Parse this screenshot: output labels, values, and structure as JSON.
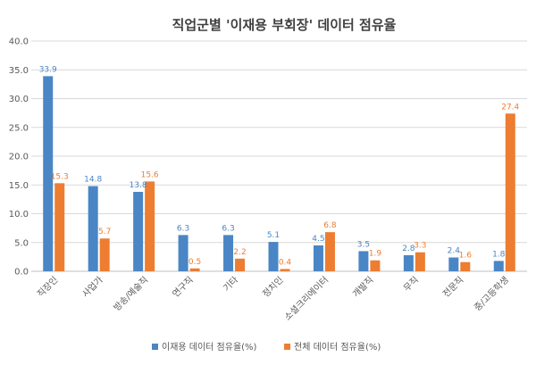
{
  "chart_data": {
    "type": "bar",
    "title": "직업군별 '이재용 부회장' 데이터 점유율",
    "xlabel": "",
    "ylabel": "",
    "ylim": [
      0,
      40
    ],
    "yticks": [
      "0.0",
      "5.0",
      "10.0",
      "15.0",
      "20.0",
      "25.0",
      "30.0",
      "35.0",
      "40.0"
    ],
    "grid": true,
    "legend_position": "bottom",
    "categories": [
      "직장인",
      "사업가",
      "방송/예술직",
      "연구직",
      "기타",
      "정치인",
      "소셜크리에이터",
      "개발직",
      "무직",
      "전문직",
      "중/고등학생"
    ],
    "series": [
      {
        "name": "이재용 데이터 점유율(%)",
        "color": "#4a86c5",
        "values": [
          33.9,
          14.8,
          13.8,
          6.3,
          6.3,
          5.1,
          4.5,
          3.5,
          2.8,
          2.4,
          1.8
        ],
        "labels": [
          "33.9",
          "14.8",
          "13.8",
          "6.3",
          "6.3",
          "5.1",
          "4.5",
          "3.5",
          "2.8",
          "2.4",
          "1.8"
        ]
      },
      {
        "name": "전체 데이터 점유율(%)",
        "color": "#ed7d31",
        "values": [
          15.3,
          5.7,
          15.6,
          0.5,
          2.2,
          0.4,
          6.8,
          1.9,
          3.3,
          1.6,
          27.4
        ],
        "labels": [
          "15.3",
          "5.7",
          "15.6",
          "0.5",
          "2.2",
          "0.4",
          "6.8",
          "1.9",
          "3.3",
          "1.6",
          "27.4"
        ]
      }
    ]
  }
}
